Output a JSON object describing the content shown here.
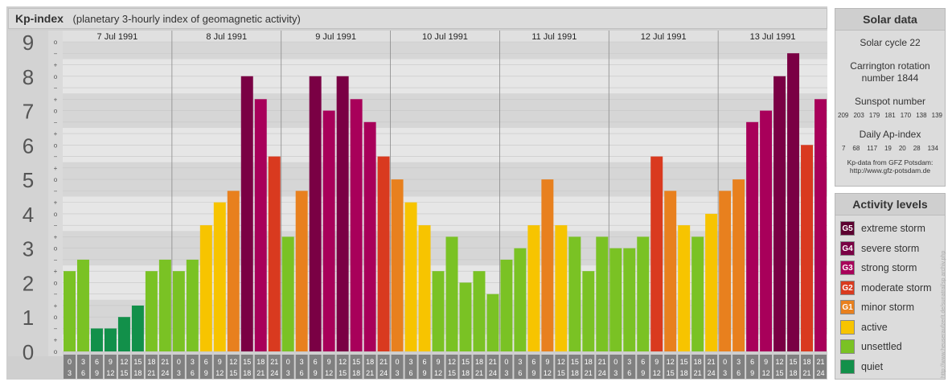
{
  "header": {
    "title": "Kp-index",
    "subtitle": "(planetary 3-hourly index of geomagnetic activity)"
  },
  "chart_data": {
    "type": "bar",
    "y_ticks": [
      "0",
      "1",
      "2",
      "3",
      "4",
      "5",
      "6",
      "7",
      "8",
      "9"
    ],
    "thirds_labels": [
      "o",
      "+",
      "−"
    ],
    "ylim": [
      0,
      9
    ],
    "days": [
      "7 Jul 1991",
      "8 Jul 1991",
      "9 Jul 1991",
      "10 Jul 1991",
      "11 Jul 1991",
      "12 Jul 1991",
      "13 Jul 1991"
    ],
    "hour_labels": [
      [
        "0",
        "3"
      ],
      [
        "3",
        "6"
      ],
      [
        "6",
        "9"
      ],
      [
        "9",
        "12"
      ],
      [
        "12",
        "15"
      ],
      [
        "15",
        "18"
      ],
      [
        "18",
        "21"
      ],
      [
        "21",
        "24"
      ]
    ],
    "values": [
      [
        2.333,
        2.667,
        0.667,
        0.667,
        1.0,
        1.333,
        2.333,
        2.667
      ],
      [
        2.333,
        2.667,
        3.667,
        4.333,
        4.667,
        8.0,
        7.333,
        5.667
      ],
      [
        3.333,
        4.667,
        8.0,
        7.0,
        8.0,
        7.333,
        6.667,
        5.667
      ],
      [
        5.0,
        4.333,
        3.667,
        2.333,
        3.333,
        2.0,
        2.333,
        1.667
      ],
      [
        2.667,
        3.0,
        3.667,
        5.0,
        3.667,
        3.333,
        2.333,
        3.333
      ],
      [
        3.0,
        3.0,
        3.333,
        5.667,
        4.667,
        3.667,
        3.333,
        4.0
      ],
      [
        4.667,
        5.0,
        6.667,
        7.0,
        8.0,
        8.667,
        6.0,
        7.333
      ]
    ],
    "grid": true
  },
  "solar": {
    "title": "Solar data",
    "cycle": "Solar cycle 22",
    "carrington_line1": "Carrington rotation",
    "carrington_line2": "number 1844",
    "sunspot_label": "Sunspot number",
    "sunspot_values": [
      "209",
      "203",
      "179",
      "181",
      "170",
      "138",
      "139"
    ],
    "ap_label": "Daily Ap-index",
    "ap_values": [
      "7",
      "68",
      "117",
      "19",
      "20",
      "28",
      "134"
    ],
    "credit_line1": "Kp-data from GFZ Potsdam:",
    "credit_line2": "http://www.gfz-potsdam.de"
  },
  "activity": {
    "title": "Activity levels",
    "levels": [
      {
        "code": "G5",
        "label": "extreme storm",
        "color": "#5c0030"
      },
      {
        "code": "G4",
        "label": "severe storm",
        "color": "#7a0044"
      },
      {
        "code": "G3",
        "label": "strong storm",
        "color": "#a8005a"
      },
      {
        "code": "G2",
        "label": "moderate storm",
        "color": "#d93a1f"
      },
      {
        "code": "G1",
        "label": "minor storm",
        "color": "#e8801e"
      },
      {
        "code": "",
        "label": "active",
        "color": "#f7c400"
      },
      {
        "code": "",
        "label": "unsettled",
        "color": "#7ac224"
      },
      {
        "code": "",
        "label": "quiet",
        "color": "#12904a"
      }
    ]
  },
  "watermark": "http://www.heuseraufzerlt.de/sunatral/sp archiv.php"
}
